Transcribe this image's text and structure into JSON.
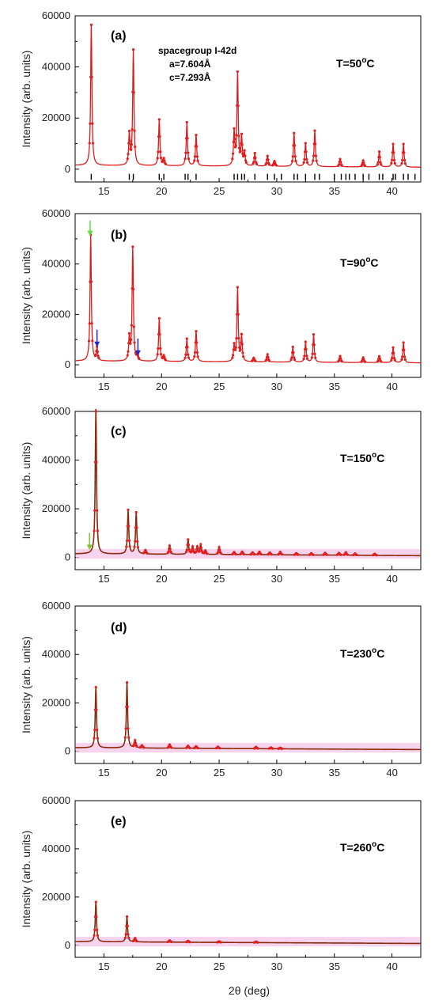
{
  "figure": {
    "xlabel": "2θ (deg)",
    "ylabel": "Intensity (arb. units)"
  },
  "chart_data": [
    {
      "type": "line",
      "panel": "(a)",
      "temperature_label": "T=50",
      "temperature_unit": "oC",
      "annotation_lines": [
        "spacegroup I-42d",
        "a=7.604Å",
        "c=7.293Å"
      ],
      "xlim": [
        12.5,
        42.5
      ],
      "ylim": [
        -5000,
        60000
      ],
      "xticks": [
        15,
        20,
        25,
        30,
        35,
        40
      ],
      "yticks": [
        0,
        20000,
        40000,
        60000
      ],
      "background": 1500,
      "peaks": [
        {
          "x": 13.9,
          "y": 55000
        },
        {
          "x": 17.2,
          "y": 12000
        },
        {
          "x": 17.55,
          "y": 45000
        },
        {
          "x": 19.8,
          "y": 18000
        },
        {
          "x": 20.2,
          "y": 2500
        },
        {
          "x": 22.2,
          "y": 17000
        },
        {
          "x": 23.0,
          "y": 12000
        },
        {
          "x": 26.3,
          "y": 13000
        },
        {
          "x": 26.6,
          "y": 36000
        },
        {
          "x": 26.95,
          "y": 11000
        },
        {
          "x": 27.2,
          "y": 5000
        },
        {
          "x": 28.1,
          "y": 5000
        },
        {
          "x": 29.2,
          "y": 4000
        },
        {
          "x": 29.8,
          "y": 2000
        },
        {
          "x": 31.5,
          "y": 13000
        },
        {
          "x": 32.5,
          "y": 9000
        },
        {
          "x": 33.3,
          "y": 14000
        },
        {
          "x": 35.5,
          "y": 3000
        },
        {
          "x": 37.5,
          "y": 2500
        },
        {
          "x": 38.9,
          "y": 6000
        },
        {
          "x": 40.1,
          "y": 9000
        },
        {
          "x": 41.0,
          "y": 9000
        }
      ],
      "reflection_ticks": [
        13.9,
        17.2,
        17.55,
        19.8,
        20.2,
        22.05,
        22.3,
        23.0,
        26.3,
        26.6,
        26.95,
        27.2,
        28.1,
        29.2,
        29.8,
        30.4,
        31.5,
        31.8,
        32.5,
        33.3,
        33.7,
        35.0,
        35.6,
        36.0,
        36.3,
        36.8,
        37.5,
        38.0,
        38.9,
        39.2,
        40.1,
        40.3,
        41.0,
        41.4,
        42.0
      ],
      "arrows": []
    },
    {
      "type": "line",
      "panel": "(b)",
      "temperature_label": "T=90",
      "temperature_unit": "oC",
      "annotation_lines": [],
      "xlim": [
        12.5,
        42.5
      ],
      "ylim": [
        -5000,
        60000
      ],
      "xticks": [
        15,
        20,
        25,
        30,
        35,
        40
      ],
      "yticks": [
        0,
        20000,
        40000,
        60000
      ],
      "background": 1500,
      "peaks": [
        {
          "x": 13.85,
          "y": 50000
        },
        {
          "x": 14.4,
          "y": 5000
        },
        {
          "x": 17.2,
          "y": 9000
        },
        {
          "x": 17.5,
          "y": 45000
        },
        {
          "x": 17.9,
          "y": 2000
        },
        {
          "x": 19.8,
          "y": 17000
        },
        {
          "x": 20.2,
          "y": 2000
        },
        {
          "x": 22.2,
          "y": 9000
        },
        {
          "x": 23.0,
          "y": 12000
        },
        {
          "x": 26.3,
          "y": 6000
        },
        {
          "x": 26.6,
          "y": 29000
        },
        {
          "x": 26.95,
          "y": 10000
        },
        {
          "x": 28.0,
          "y": 1500
        },
        {
          "x": 29.2,
          "y": 3000
        },
        {
          "x": 31.4,
          "y": 6000
        },
        {
          "x": 32.5,
          "y": 8000
        },
        {
          "x": 33.2,
          "y": 11000
        },
        {
          "x": 35.5,
          "y": 2500
        },
        {
          "x": 37.5,
          "y": 2000
        },
        {
          "x": 38.9,
          "y": 2500
        },
        {
          "x": 40.1,
          "y": 6000
        },
        {
          "x": 41.0,
          "y": 8000
        }
      ],
      "reflection_ticks": [],
      "arrows": [
        {
          "x": 13.8,
          "y_tip": 51000,
          "color": "#55e03a"
        },
        {
          "x": 14.4,
          "y_tip": 7000,
          "color": "#1d2bc4"
        },
        {
          "x": 17.95,
          "y_tip": 3500,
          "color": "#1d2bc4"
        }
      ]
    },
    {
      "type": "line",
      "panel": "(c)",
      "temperature_label": "T=150",
      "temperature_unit": "oC",
      "annotation_lines": [],
      "xlim": [
        12.5,
        42.5
      ],
      "ylim": [
        -5000,
        60000
      ],
      "xticks": [
        15,
        20,
        25,
        30,
        35,
        40
      ],
      "yticks": [
        0,
        20000,
        40000,
        60000
      ],
      "background": 1500,
      "peaks": [
        {
          "x": 14.3,
          "y": 60000
        },
        {
          "x": 17.1,
          "y": 18000
        },
        {
          "x": 17.8,
          "y": 17000
        },
        {
          "x": 18.6,
          "y": 1500
        },
        {
          "x": 20.7,
          "y": 3500
        },
        {
          "x": 22.3,
          "y": 6000
        },
        {
          "x": 22.7,
          "y": 3000
        },
        {
          "x": 23.1,
          "y": 3000
        },
        {
          "x": 23.4,
          "y": 4000
        },
        {
          "x": 23.8,
          "y": 1500
        },
        {
          "x": 25.0,
          "y": 3000
        },
        {
          "x": 26.3,
          "y": 1000
        },
        {
          "x": 27.0,
          "y": 1200
        },
        {
          "x": 27.9,
          "y": 900
        },
        {
          "x": 28.5,
          "y": 1200
        },
        {
          "x": 29.4,
          "y": 900
        },
        {
          "x": 30.3,
          "y": 1200
        },
        {
          "x": 31.7,
          "y": 700
        },
        {
          "x": 33.0,
          "y": 700
        },
        {
          "x": 34.2,
          "y": 900
        },
        {
          "x": 35.4,
          "y": 900
        },
        {
          "x": 36.0,
          "y": 1200
        },
        {
          "x": 36.8,
          "y": 700
        },
        {
          "x": 38.5,
          "y": 600
        }
      ],
      "reflection_ticks": [],
      "arrows": [
        {
          "x": 13.75,
          "y_tip": 3000,
          "color": "#7fc43a"
        }
      ]
    },
    {
      "type": "line",
      "panel": "(d)",
      "temperature_label": "T=230",
      "temperature_unit": "oC",
      "annotation_lines": [],
      "xlim": [
        12.5,
        42.5
      ],
      "ylim": [
        -5000,
        60000
      ],
      "xticks": [
        15,
        20,
        25,
        30,
        35,
        40
      ],
      "yticks": [
        0,
        20000,
        40000,
        60000
      ],
      "background": 1500,
      "peaks": [
        {
          "x": 14.3,
          "y": 25000
        },
        {
          "x": 17.0,
          "y": 27000
        },
        {
          "x": 17.7,
          "y": 3000
        },
        {
          "x": 18.3,
          "y": 1000
        },
        {
          "x": 20.7,
          "y": 1500
        },
        {
          "x": 22.3,
          "y": 1000
        },
        {
          "x": 23.0,
          "y": 800
        },
        {
          "x": 24.9,
          "y": 700
        },
        {
          "x": 28.2,
          "y": 700
        },
        {
          "x": 29.5,
          "y": 500
        },
        {
          "x": 30.3,
          "y": 400
        }
      ],
      "reflection_ticks": [],
      "arrows": []
    },
    {
      "type": "line",
      "panel": "(e)",
      "temperature_label": "T=260",
      "temperature_unit": "oC",
      "annotation_lines": [],
      "xlim": [
        12.5,
        42.5
      ],
      "ylim": [
        -5000,
        60000
      ],
      "xticks": [
        15,
        20,
        25,
        30,
        35,
        40
      ],
      "yticks": [
        0,
        20000,
        40000,
        60000
      ],
      "background": 1500,
      "peaks": [
        {
          "x": 14.3,
          "y": 16500
        },
        {
          "x": 17.0,
          "y": 10500
        },
        {
          "x": 17.7,
          "y": 1500
        },
        {
          "x": 20.7,
          "y": 700
        },
        {
          "x": 22.3,
          "y": 500
        },
        {
          "x": 25.0,
          "y": 400
        },
        {
          "x": 28.2,
          "y": 400
        }
      ],
      "reflection_ticks": [],
      "arrows": []
    }
  ],
  "colors": {
    "observed_points": "#e02020",
    "calc_line_low_T": "#e01818",
    "calc_line_high_T": "#8a2a0a",
    "difference_band": "#f3c6e8",
    "reflection_tick": "#000000",
    "axis": "#000000"
  }
}
